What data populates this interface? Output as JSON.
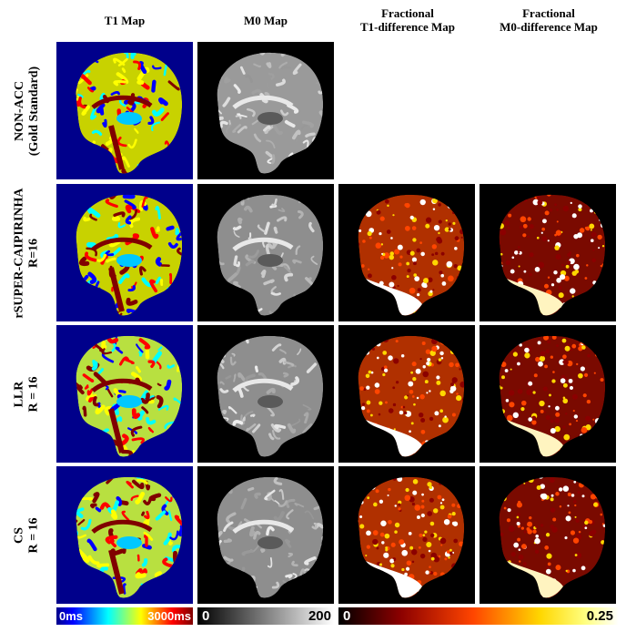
{
  "columns": [
    {
      "title": "T1 Map"
    },
    {
      "title": "M0 Map"
    },
    {
      "title": "Fractional\nT1-difference  Map"
    },
    {
      "title": "Fractional\nM0-difference  Map"
    }
  ],
  "rows": [
    {
      "label": "NON-ACC\n(Gold Standard)"
    },
    {
      "label": "rSUPER-CAIPIRINHA\nR=16"
    },
    {
      "label": "LLR\nR = 16"
    },
    {
      "label": "CS\nR = 16"
    }
  ],
  "colorbars": [
    {
      "min_label": "0ms",
      "max_label": "3000ms",
      "colormap": "jet"
    },
    {
      "min_label": "0",
      "max_label": "200",
      "colormap": "gray"
    },
    {
      "min_label": "0",
      "max_label": "0.25",
      "colormap": "hot"
    }
  ],
  "colors": {
    "t1_background": "#00008b",
    "map_background": "#000000",
    "jet": [
      "#00008b",
      "#0000ff",
      "#00ffff",
      "#ffff00",
      "#ff0000",
      "#800000"
    ],
    "hot": [
      "#000000",
      "#8b0000",
      "#ff4500",
      "#ffd700",
      "#ffffff"
    ]
  }
}
